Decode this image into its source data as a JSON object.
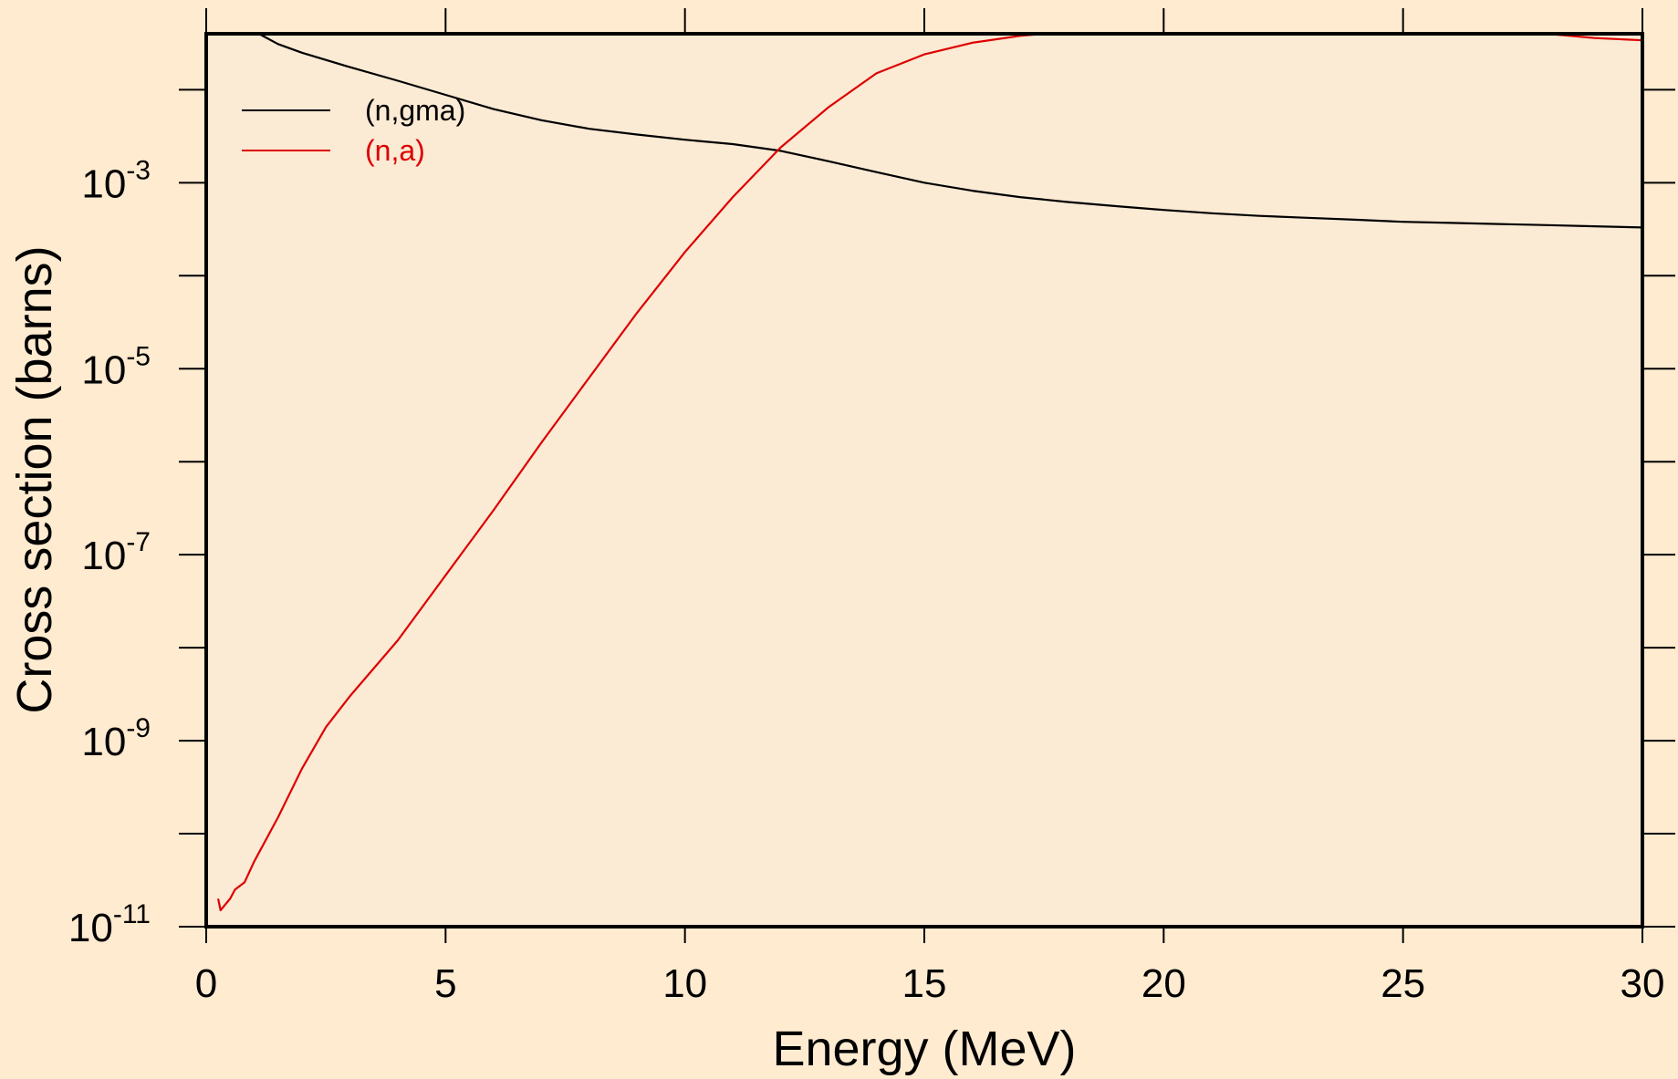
{
  "chart_data": {
    "type": "line",
    "title": "",
    "xlabel": "Energy (MeV)",
    "ylabel": "Cross section (barns)",
    "xlim": [
      0,
      30
    ],
    "ylim": [
      1e-11,
      0.04
    ],
    "y_scale": "log",
    "grid": false,
    "legend_position": "top-left",
    "x_ticks": [
      "0",
      "5",
      "10",
      "15",
      "20",
      "25",
      "30"
    ],
    "y_ticks": [
      {
        "base": "10",
        "exp": "-3",
        "value": 0.001
      },
      {
        "base": "10",
        "exp": "-5",
        "value": 1e-05
      },
      {
        "base": "10",
        "exp": "-7",
        "value": 1e-07
      },
      {
        "base": "10",
        "exp": "-9",
        "value": 1e-09
      },
      {
        "base": "10",
        "exp": "-11",
        "value": 1e-11
      }
    ],
    "series": [
      {
        "name": "(n,gma)",
        "color": "#000000",
        "x": [
          1.1,
          1.5,
          2,
          3,
          4,
          5,
          6,
          7,
          8,
          9,
          10,
          11,
          12,
          13,
          14,
          15,
          16,
          17,
          18,
          19,
          20,
          21,
          22,
          23,
          24,
          25,
          26,
          27,
          28,
          29,
          30
        ],
        "y": [
          0.04,
          0.031,
          0.025,
          0.0175,
          0.0125,
          0.0088,
          0.0062,
          0.0047,
          0.0038,
          0.0033,
          0.0029,
          0.0026,
          0.0022,
          0.0017,
          0.0013,
          0.001,
          0.00082,
          0.0007,
          0.00062,
          0.00056,
          0.00051,
          0.00047,
          0.00044,
          0.00042,
          0.0004,
          0.00038,
          0.00037,
          0.00036,
          0.00035,
          0.00034,
          0.00033
        ]
      },
      {
        "name": "(n,a)",
        "color": "#dd0000",
        "x": [
          0.25,
          0.3,
          0.5,
          0.6,
          0.8,
          1,
          1.5,
          2,
          2.5,
          3,
          4,
          5,
          6,
          7,
          8,
          9,
          10,
          11,
          12,
          13,
          14,
          15,
          16,
          17,
          18,
          19,
          20,
          21,
          22,
          23,
          24,
          25,
          26,
          27,
          28,
          29,
          30
        ],
        "y": [
          2e-11,
          1.5e-11,
          2e-11,
          2.5e-11,
          3e-11,
          5e-11,
          1.5e-10,
          5e-10,
          1.4e-09,
          3e-09,
          1.2e-08,
          6e-08,
          3e-07,
          1.6e-06,
          8e-06,
          4e-05,
          0.00018,
          0.0007,
          0.0024,
          0.0065,
          0.015,
          0.024,
          0.032,
          0.038,
          0.042,
          0.045,
          0.048,
          0.051,
          0.053,
          0.054,
          0.055,
          0.05,
          0.047,
          0.043,
          0.04,
          0.036,
          0.034
        ]
      }
    ]
  }
}
